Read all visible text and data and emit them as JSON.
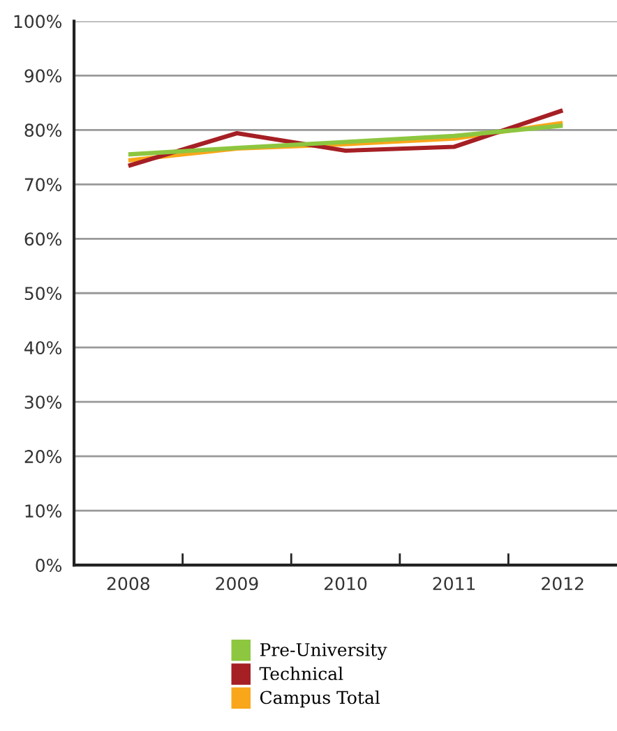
{
  "chart_data": {
    "type": "line",
    "categories": [
      "2008",
      "2009",
      "2010",
      "2011",
      "2012"
    ],
    "series": [
      {
        "name": "Pre-University",
        "color": "#8dc63f",
        "values": [
          75.5,
          76.7,
          77.8,
          78.9,
          80.8
        ]
      },
      {
        "name": "Technical",
        "color": "#a51f24",
        "values": [
          73.4,
          79.4,
          76.2,
          76.9,
          83.6
        ]
      },
      {
        "name": "Campus Total",
        "color": "#f9a61a",
        "values": [
          74.4,
          76.6,
          77.4,
          78.4,
          81.3
        ]
      }
    ],
    "ylim": [
      0,
      100
    ],
    "yticks": [
      {
        "value": 0,
        "label": "0%"
      },
      {
        "value": 10,
        "label": "10%"
      },
      {
        "value": 20,
        "label": "20%"
      },
      {
        "value": 30,
        "label": "30%"
      },
      {
        "value": 40,
        "label": "40%"
      },
      {
        "value": 50,
        "label": "50%"
      },
      {
        "value": 60,
        "label": "60%"
      },
      {
        "value": 70,
        "label": "70%"
      },
      {
        "value": 80,
        "label": "80%"
      },
      {
        "value": 90,
        "label": "90%"
      },
      {
        "value": 100,
        "label": "100%"
      }
    ],
    "grid": "y",
    "legend": "bottom",
    "marker": "none",
    "line_style": "solid"
  }
}
